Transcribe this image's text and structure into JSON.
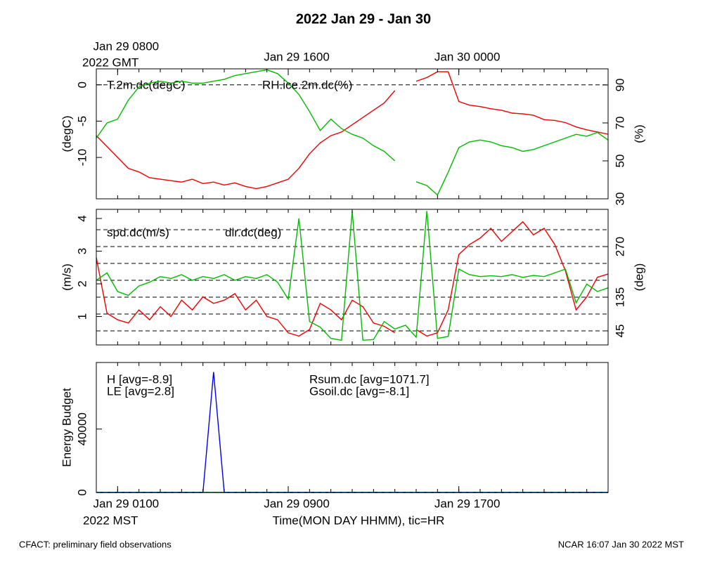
{
  "title": "2022 Jan 29 - Jan 30",
  "footer_left": "CFACT: preliminary field observations",
  "footer_right": "NCAR 16:07 Jan 30 2022 MST",
  "chart_data": [
    {
      "type": "line",
      "ylabel": "(degC)",
      "y2label": "(%)",
      "xlim": [
        0,
        24
      ],
      "x2ticks": [
        {
          "value": 1,
          "label": "Jan 29 0800"
        },
        {
          "value": 9,
          "label": "Jan 29 1600"
        },
        {
          "value": 17,
          "label": "Jan 30 0000"
        }
      ],
      "x2_zone": "2022 GMT",
      "xminorticks": [
        1,
        2,
        3,
        4,
        5,
        6,
        7,
        8,
        9,
        10,
        11,
        12,
        13,
        14,
        15,
        16,
        17,
        18,
        19,
        20,
        21,
        22,
        23
      ],
      "ylim": [
        -15.7,
        2.2
      ],
      "yticks": [
        0,
        -5,
        -10
      ],
      "y2lim": [
        30,
        98.5
      ],
      "y2ticks": [
        90,
        70,
        50,
        30
      ],
      "grid_y": [
        0
      ],
      "x": [
        0,
        0.5,
        1,
        1.5,
        2,
        2.5,
        3,
        3.5,
        4,
        4.5,
        5,
        5.5,
        6,
        6.5,
        7,
        7.5,
        8,
        8.5,
        9,
        9.5,
        10,
        10.5,
        11,
        11.5,
        12,
        12.5,
        13,
        13.5,
        14,
        14.5,
        15,
        15.5,
        16,
        16.5,
        17,
        17.5,
        18,
        18.5,
        19,
        19.5,
        20,
        20.5,
        21,
        21.5,
        22,
        22.5,
        23,
        23.5,
        24
      ],
      "series": [
        {
          "name": "T.2m.dc(degC)",
          "color": "#ee0000",
          "values": [
            -7,
            -8.5,
            -10,
            -11.5,
            -12,
            -12.8,
            -13,
            -13.2,
            -13.4,
            -13,
            -13.6,
            -13.4,
            -13.8,
            -13.5,
            -14,
            -14.3,
            -14,
            -13.5,
            -13,
            -11.5,
            -9.5,
            -8,
            -7,
            -6.5,
            -5.5,
            -4.5,
            -3.5,
            -2.5,
            -0.8,
            null,
            0.5,
            1,
            1.8,
            1.8,
            -2.3,
            -2.8,
            -3,
            -3.3,
            -3.5,
            -3.9,
            -4,
            -4.2,
            -4.8,
            -4.9,
            -5.2,
            -5.8,
            -6.2,
            -6.5,
            -6.8
          ]
        },
        {
          "name": "RH.ice.2m.dc(%)",
          "color": "#00bb00",
          "axis": "y2",
          "values": [
            62,
            70,
            72,
            82,
            89,
            91,
            92,
            91,
            92,
            91,
            91,
            92,
            93,
            95,
            96,
            97,
            98,
            96,
            91,
            85,
            76,
            66,
            72,
            67,
            64,
            62,
            58,
            55,
            50,
            null,
            39,
            37,
            32,
            44,
            57,
            60,
            61,
            60,
            58,
            57,
            55,
            56,
            58,
            60,
            62,
            64,
            63,
            65,
            61
          ]
        }
      ]
    },
    {
      "type": "line",
      "ylabel": "(m/s)",
      "y2label": "(deg)",
      "xlim": [
        0,
        24
      ],
      "xminorticks": [
        1,
        2,
        3,
        4,
        5,
        6,
        7,
        8,
        9,
        10,
        11,
        12,
        13,
        14,
        15,
        16,
        17,
        18,
        19,
        20,
        21,
        22,
        23
      ],
      "ylim": [
        0.13,
        4.28
      ],
      "yticks": [
        4,
        3,
        2,
        1
      ],
      "y2lim": [
        7.5,
        369.5
      ],
      "y2ticks": [
        45,
        135,
        270
      ],
      "grid_y2": [
        45,
        90,
        135,
        180,
        225,
        270,
        315
      ],
      "x": [
        0,
        0.5,
        1,
        1.5,
        2,
        2.5,
        3,
        3.5,
        4,
        4.5,
        5,
        5.5,
        6,
        6.5,
        7,
        7.5,
        8,
        8.5,
        9,
        9.5,
        10,
        10.5,
        11,
        11.5,
        12,
        12.5,
        13,
        13.5,
        14,
        14.5,
        15,
        15.5,
        16,
        16.5,
        17,
        17.5,
        18,
        18.5,
        19,
        19.5,
        20,
        20.5,
        21,
        21.5,
        22,
        22.5,
        23,
        23.5,
        24
      ],
      "series": [
        {
          "name": "spd.dc(m/s)",
          "color": "#ee0000",
          "values": [
            2.8,
            1.1,
            0.9,
            0.8,
            1.2,
            0.9,
            1.3,
            1.0,
            1.5,
            1.2,
            1.6,
            1.4,
            1.5,
            1.7,
            1.2,
            1.5,
            1.0,
            0.9,
            0.5,
            0.4,
            0.6,
            1.4,
            1.2,
            0.9,
            1.5,
            1.3,
            0.8,
            0.7,
            0.5,
            null,
            0.6,
            0.4,
            0.5,
            1.2,
            2.9,
            3.2,
            3.4,
            3.7,
            3.3,
            3.6,
            3.9,
            3.5,
            3.7,
            3.2,
            2.4,
            1.2,
            1.6,
            2.2,
            2.3
          ]
        },
        {
          "name": "dir.dc(deg)",
          "color": "#00bb00",
          "axis": "y2",
          "values": [
            180,
            200,
            150,
            140,
            165,
            175,
            190,
            185,
            195,
            180,
            190,
            185,
            195,
            180,
            190,
            185,
            195,
            175,
            130,
            345,
            70,
            55,
            25,
            20,
            365,
            20,
            22,
            70,
            50,
            60,
            28,
            365,
            25,
            30,
            210,
            195,
            190,
            192,
            190,
            195,
            188,
            193,
            190,
            200,
            210,
            120,
            170,
            150,
            160
          ]
        }
      ]
    },
    {
      "type": "line",
      "ylabel": "Energy Budget",
      "xlabel": "Time(MON DAY HHMM), tic=HR",
      "xlim": [
        0,
        24
      ],
      "xticks": [
        {
          "value": 1,
          "label": "Jan 29 0100"
        },
        {
          "value": 9,
          "label": "Jan 29 0900"
        },
        {
          "value": 17,
          "label": "Jan 29 1700"
        }
      ],
      "x_zone": "2022 MST",
      "xminorticks": [
        1,
        2,
        3,
        4,
        5,
        6,
        7,
        8,
        9,
        10,
        11,
        12,
        13,
        14,
        15,
        16,
        17,
        18,
        19,
        20,
        21,
        22,
        23
      ],
      "ylim": [
        0,
        82000
      ],
      "yticks": [
        0,
        40000
      ],
      "x": [
        0,
        0.5,
        1,
        1.5,
        2,
        2.5,
        3,
        3.5,
        4,
        4.5,
        5,
        5.5,
        6,
        6.5,
        7,
        7.5,
        8,
        8.5,
        9,
        9.5,
        10,
        10.5,
        11,
        11.5,
        12,
        12.5,
        13,
        13.5,
        14,
        14.5,
        15,
        15.5,
        16,
        16.5,
        17,
        17.5,
        18,
        18.5,
        19,
        19.5,
        20,
        20.5,
        21,
        21.5,
        22,
        22.5,
        23,
        23.5,
        24
      ],
      "series": [
        {
          "name": "H [avg=-8.9]",
          "color": "#ee0000",
          "values": [
            0,
            0,
            0,
            0,
            0,
            0,
            0,
            0,
            0,
            0,
            0,
            0,
            0,
            0,
            0,
            0,
            0,
            0,
            0,
            0,
            0,
            0,
            0,
            0,
            0,
            0,
            0,
            0,
            0,
            0,
            0,
            0,
            0,
            0,
            0,
            0,
            0,
            0,
            0,
            0,
            0,
            0,
            0,
            0,
            0,
            0,
            0,
            0,
            0
          ]
        },
        {
          "name": "LE [avg=2.8]",
          "color": "#00bb00",
          "values": [
            0,
            0,
            0,
            0,
            0,
            0,
            0,
            0,
            0,
            0,
            0,
            0,
            0,
            0,
            0,
            0,
            0,
            0,
            0,
            0,
            0,
            0,
            0,
            0,
            0,
            0,
            0,
            0,
            0,
            0,
            0,
            0,
            0,
            0,
            0,
            0,
            0,
            0,
            0,
            0,
            0,
            0,
            0,
            0,
            0,
            0,
            0,
            0,
            0
          ]
        },
        {
          "name": "Rsum.dc [avg=1071.7]",
          "color": "#0000ee",
          "values": [
            0,
            0,
            0,
            0,
            0,
            0,
            0,
            0,
            0,
            0,
            0,
            76000,
            0,
            0,
            0,
            0,
            0,
            0,
            0,
            0,
            0,
            0,
            0,
            0,
            0,
            0,
            0,
            0,
            0,
            0,
            0,
            0,
            0,
            0,
            0,
            0,
            0,
            0,
            0,
            0,
            0,
            0,
            0,
            0,
            0,
            0,
            0,
            0,
            0
          ]
        },
        {
          "name": "Gsoil.dc [avg=-8.1]",
          "color": "#00eeee",
          "dashed": true,
          "values": [
            0,
            0,
            0,
            0,
            0,
            0,
            0,
            0,
            0,
            0,
            0,
            0,
            0,
            0,
            0,
            0,
            0,
            0,
            0,
            0,
            0,
            0,
            0,
            0,
            0,
            0,
            0,
            0,
            0,
            0,
            0,
            0,
            0,
            0,
            0,
            0,
            0,
            0,
            0,
            0,
            0,
            0,
            0,
            0,
            0,
            0,
            0,
            0,
            0
          ]
        }
      ]
    }
  ]
}
